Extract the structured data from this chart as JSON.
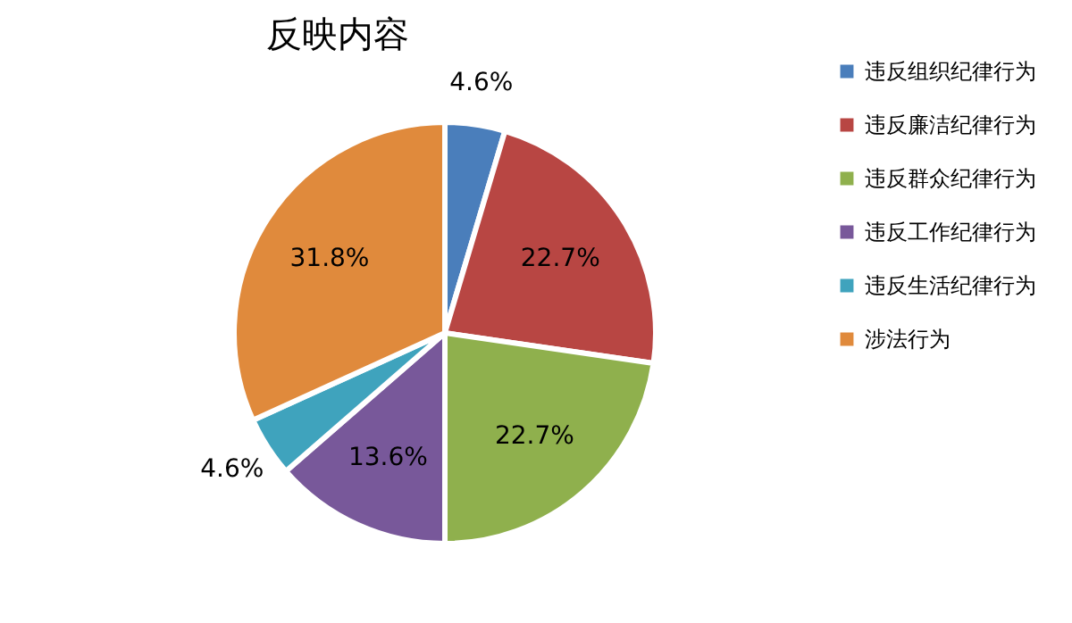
{
  "chart_data": {
    "type": "pie",
    "title": "反映内容",
    "categories": [
      "违反组织纪律行为",
      "违反廉洁纪律行为",
      "违反群众纪律行为",
      "违反工作纪律行为",
      "违反生活纪律行为",
      "涉法行为"
    ],
    "values": [
      4.6,
      22.7,
      22.7,
      13.6,
      4.6,
      31.8
    ],
    "colors": [
      "#4a7ebb",
      "#b84643",
      "#8fb04d",
      "#78589a",
      "#3fa3bd",
      "#e08a3c"
    ],
    "value_labels": [
      "4.6%",
      "22.7%",
      "22.7%",
      "13.6%",
      "4.6%",
      "31.8%"
    ],
    "legend": "right"
  }
}
